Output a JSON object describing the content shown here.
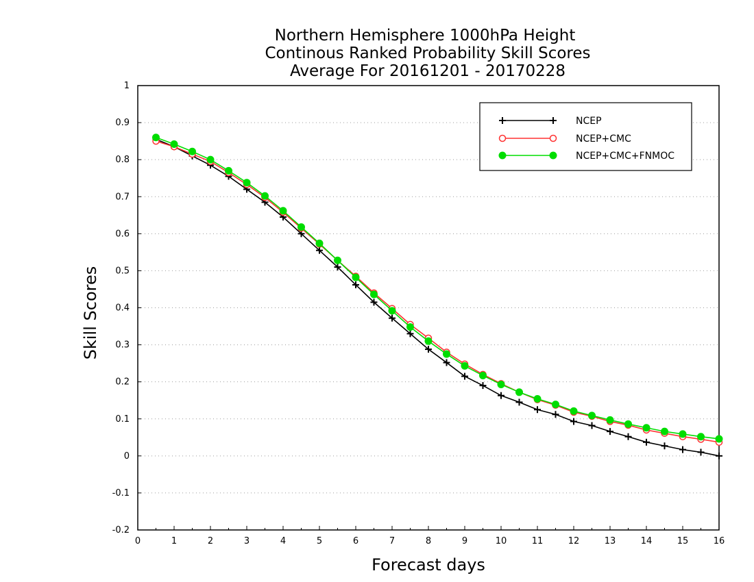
{
  "chart_data": {
    "type": "line",
    "title": [
      "Northern Hemisphere 1000hPa Height",
      "Continous Ranked Probability Skill Scores",
      "Average For 20161201 - 20170228"
    ],
    "xlabel": "Forecast days",
    "ylabel": "Skill Scores",
    "xlim": [
      0,
      16
    ],
    "ylim": [
      -0.2,
      1
    ],
    "xticks": [
      0,
      1,
      2,
      3,
      4,
      5,
      6,
      7,
      8,
      9,
      10,
      11,
      12,
      13,
      14,
      15,
      16
    ],
    "yticks": [
      -0.2,
      -0.1,
      0,
      0.1,
      0.2,
      0.3,
      0.4,
      0.5,
      0.6,
      0.7,
      0.8,
      0.9,
      1
    ],
    "ytick_labels": [
      "-0.2",
      "-0.1",
      "0",
      "0.1",
      "0.2",
      "0.3",
      "0.4",
      "0.5",
      "0.6",
      "0.7",
      "0.8",
      "0.9",
      "1"
    ],
    "grid": "horizontal dotted",
    "legend_position": "top-right",
    "x": [
      0.5,
      1,
      1.5,
      2,
      2.5,
      3,
      3.5,
      4,
      4.5,
      5,
      5.5,
      6,
      6.5,
      7,
      7.5,
      8,
      8.5,
      9,
      9.5,
      10,
      10.5,
      11,
      11.5,
      12,
      12.5,
      13,
      13.5,
      14,
      14.5,
      15,
      15.5,
      16
    ],
    "series": [
      {
        "name": "NCEP",
        "color": "#000000",
        "marker": "plus",
        "values": [
          0.855,
          0.835,
          0.81,
          0.785,
          0.755,
          0.72,
          0.685,
          0.645,
          0.6,
          0.555,
          0.51,
          0.462,
          0.415,
          0.372,
          0.33,
          0.288,
          0.252,
          0.215,
          0.19,
          0.163,
          0.145,
          0.125,
          0.112,
          0.093,
          0.082,
          0.066,
          0.052,
          0.037,
          0.027,
          0.017,
          0.01,
          0.0
        ]
      },
      {
        "name": "NCEP+CMC",
        "color": "#ff3030",
        "marker": "open-circle",
        "values": [
          0.85,
          0.835,
          0.815,
          0.795,
          0.765,
          0.733,
          0.698,
          0.658,
          0.615,
          0.572,
          0.528,
          0.485,
          0.44,
          0.398,
          0.355,
          0.318,
          0.28,
          0.248,
          0.22,
          0.195,
          0.172,
          0.152,
          0.137,
          0.118,
          0.107,
          0.093,
          0.083,
          0.07,
          0.061,
          0.052,
          0.045,
          0.037
        ]
      },
      {
        "name": "NCEP+CMC+FNMOC",
        "color": "#00dd00",
        "marker": "filled-circle",
        "values": [
          0.86,
          0.842,
          0.822,
          0.8,
          0.77,
          0.738,
          0.702,
          0.662,
          0.618,
          0.574,
          0.528,
          0.482,
          0.436,
          0.392,
          0.348,
          0.31,
          0.275,
          0.243,
          0.217,
          0.193,
          0.172,
          0.154,
          0.139,
          0.121,
          0.109,
          0.097,
          0.086,
          0.076,
          0.066,
          0.059,
          0.052,
          0.046
        ]
      }
    ]
  }
}
